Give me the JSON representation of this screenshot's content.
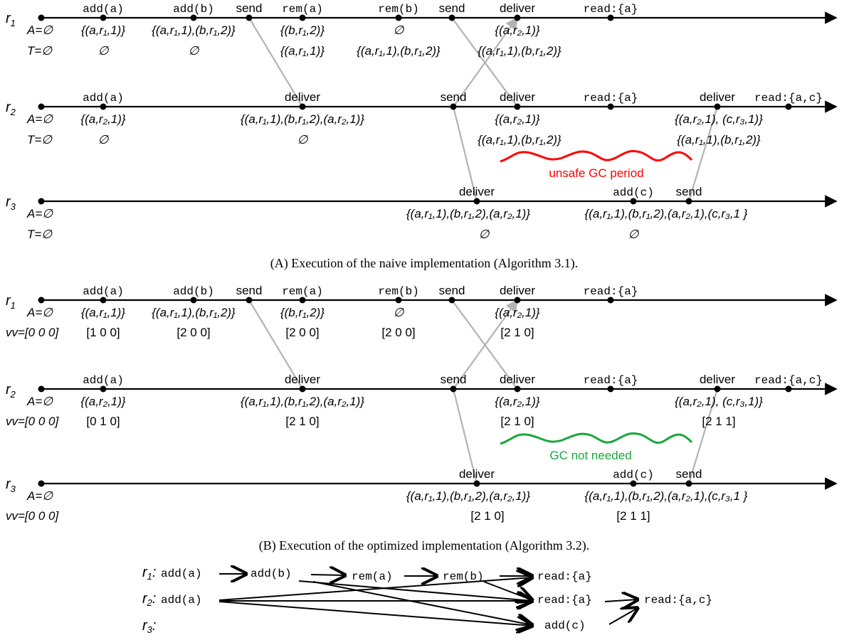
{
  "colors": {
    "unsafe": "#ff0000",
    "not_needed": "#1aa73a",
    "message": "#b3b3b3"
  },
  "replicas": {
    "r1": "r",
    "r1_sub": "1",
    "r2": "r",
    "r2_sub": "2",
    "r3": "r",
    "r3_sub": "3"
  },
  "partA": {
    "caption": "(A) Execution of the naive implementation (Algorithm 3.1).",
    "r1_A0": "A=∅",
    "r1_T0": "T=∅",
    "r2_A0": "A=∅",
    "r2_T0": "T=∅",
    "r3_A0": "A=∅",
    "r3_T0": "T=∅",
    "gc_label": "unsafe GC period"
  },
  "partB": {
    "caption": "(B) Execution of the optimized implementation (Algorithm 3.2).",
    "r1_A0": "A=∅",
    "r1_vv0": "vv=[0 0 0]",
    "r2_A0": "A=∅",
    "r2_vv0": "vv=[0 0 0]",
    "r3_A0": "A=∅",
    "r3_vv0": "vv=[0 0 0]",
    "vv_r1": [
      "[1 0 0]",
      "[2 0 0]",
      "[2 0 0]",
      "[2 0 0]",
      "[2 1 0]"
    ],
    "vv_r2": [
      "[0 1 0]",
      "[2 1 0]",
      "[2 1 0]",
      "[2 1 1]"
    ],
    "vv_r3": [
      "[2 1 0]",
      "[2 1 1]"
    ],
    "gc_label": "GC not needed"
  },
  "ops": {
    "add_a": "add(a)",
    "add_b": "add(b)",
    "add_c": "add(c)",
    "rem_a": "rem(a)",
    "rem_b": "rem(b)",
    "send": "send",
    "deliver": "deliver",
    "read_a": "read:{a}",
    "read_ac": "read:{a,c}"
  },
  "order": {
    "r1": "r1:",
    "r2": "r2:",
    "r3": "r3:"
  }
}
